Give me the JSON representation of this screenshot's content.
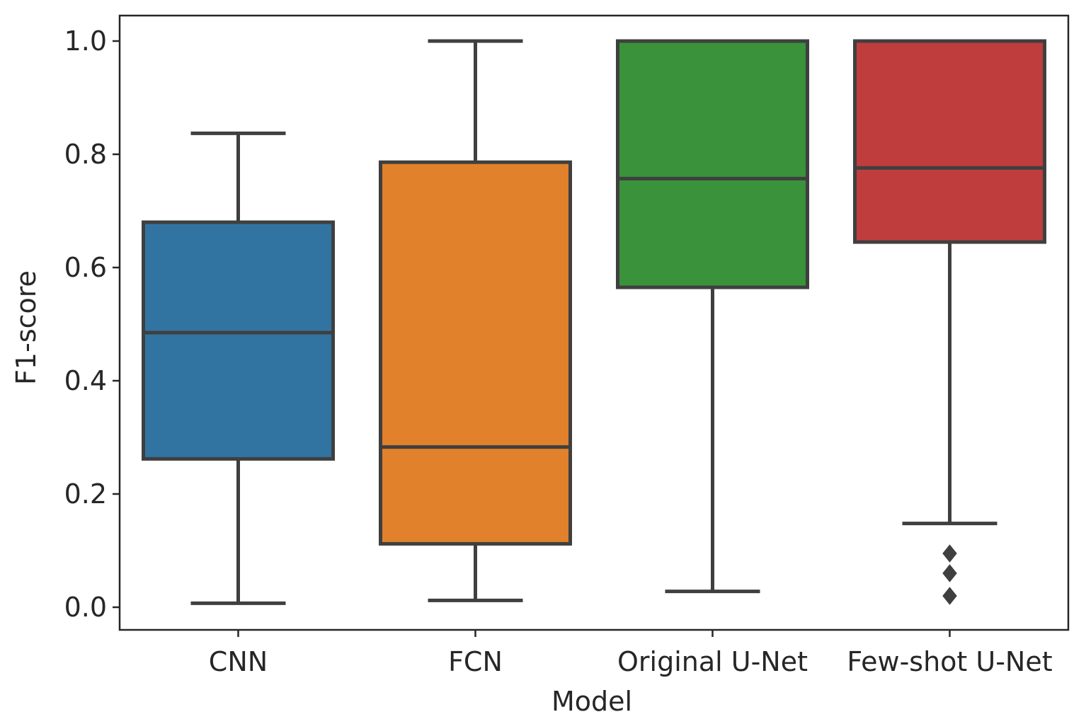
{
  "chart_data": {
    "type": "box",
    "xlabel": "Model",
    "ylabel": "F1-score",
    "ylim": [
      -0.04,
      1.045
    ],
    "yticks": [
      "0.0",
      "0.2",
      "0.4",
      "0.6",
      "0.8",
      "1.0"
    ],
    "grid": false,
    "legend": "none",
    "categories": [
      "CNN",
      "FCN",
      "Original U-Net",
      "Few-shot U-Net"
    ],
    "series": [
      {
        "category": "CNN",
        "color": "#3274a1",
        "whisker_low": 0.007,
        "q1": 0.262,
        "median": 0.485,
        "q3": 0.68,
        "whisker_high": 0.837,
        "outliers": []
      },
      {
        "category": "FCN",
        "color": "#e1812c",
        "whisker_low": 0.012,
        "q1": 0.112,
        "median": 0.283,
        "q3": 0.786,
        "whisker_high": 1.0,
        "outliers": []
      },
      {
        "category": "Original U-Net",
        "color": "#3a923a",
        "whisker_low": 0.028,
        "q1": 0.565,
        "median": 0.757,
        "q3": 1.0,
        "whisker_high": 1.0,
        "outliers": []
      },
      {
        "category": "Few-shot U-Net",
        "color": "#c03d3e",
        "whisker_low": 0.148,
        "q1": 0.645,
        "median": 0.776,
        "q3": 1.0,
        "whisker_high": 1.0,
        "outliers": [
          0.02,
          0.06,
          0.095
        ]
      }
    ]
  }
}
